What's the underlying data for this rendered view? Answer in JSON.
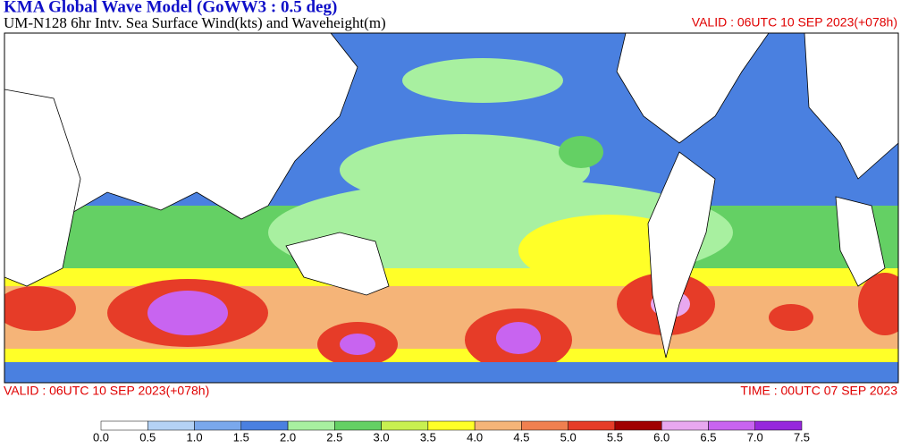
{
  "header": {
    "title": "KMA  Global Wave Model (GoWW3 : 0.5 deg)",
    "subtitle": "UM-N128  6hr Intv. Sea Surface Wind(kts) and Waveheight(m)",
    "valid_top": "VALID : 06UTC 10 SEP 2023(+078h)"
  },
  "footer": {
    "valid": "VALID : 06UTC 10 SEP 2023(+078h)",
    "time": "TIME : 00UTC 07 SEP 2023"
  },
  "colorbar": {
    "ticks": [
      {
        "value": 0,
        "label": "0.0"
      },
      0.5,
      {
        "value": 1,
        "label": "1.0"
      },
      1.5,
      {
        "value": 2,
        "label": "2.0"
      },
      2.5,
      {
        "value": 3,
        "label": "3.0"
      },
      3.5,
      {
        "value": 4,
        "label": "4.0"
      },
      4.5,
      {
        "value": 5,
        "label": "5.0"
      },
      5.5,
      {
        "value": 6,
        "label": "6.0"
      },
      6.5,
      {
        "value": 7,
        "label": "7.0"
      },
      7.5
    ],
    "colors": [
      "#ffffff",
      "#b4d2f5",
      "#7aa8ec",
      "#4a80e0",
      "#a8f0a0",
      "#64d064",
      "#c8f050",
      "#ffff28",
      "#f5b478",
      "#f08050",
      "#e63c28",
      "#a00000",
      "#e8a8f0",
      "#c864f0",
      "#9628dc"
    ]
  }
}
